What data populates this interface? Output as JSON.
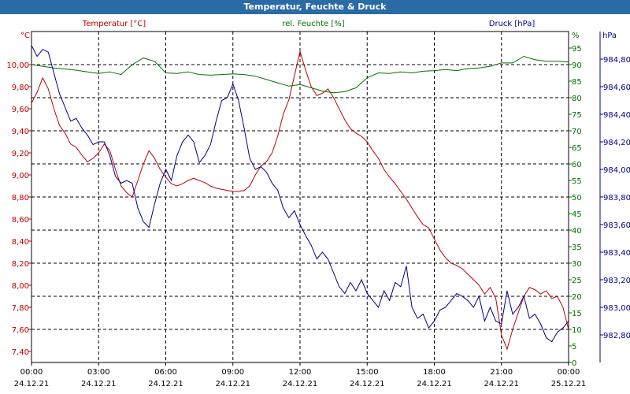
{
  "window": {
    "title": "Temperatur, Feuchte & Druck"
  },
  "colors": {
    "temperature": "#c00000",
    "humidity": "#007000",
    "pressure": "#00008b",
    "grid": "#000000"
  },
  "chart_data": {
    "type": "line",
    "title": "Temperatur, Feuchte & Druck",
    "grid": true,
    "x_range": [
      "2021-12-24 00:00",
      "2021-12-25 00:00"
    ],
    "x_ticks": [
      {
        "time": "00:00",
        "date": "24.12.21"
      },
      {
        "time": "03:00",
        "date": "24.12.21"
      },
      {
        "time": "06:00",
        "date": "24.12.21"
      },
      {
        "time": "09:00",
        "date": "24.12.21"
      },
      {
        "time": "12:00",
        "date": "24.12.21"
      },
      {
        "time": "15:00",
        "date": "24.12.21"
      },
      {
        "time": "18:00",
        "date": "24.12.21"
      },
      {
        "time": "21:00",
        "date": "24.12.21"
      },
      {
        "time": "00:00",
        "date": "25.12.21"
      }
    ],
    "axes": {
      "temperature": {
        "label": "Temperatur [°C]",
        "unit": "°C",
        "ylim": [
          7.3,
          10.3
        ],
        "ticks": [
          "7,40",
          "7,60",
          "7,80",
          "8,00",
          "8,20",
          "8,40",
          "8,60",
          "8,80",
          "9,00",
          "9,20",
          "9,40",
          "9,60",
          "9,80",
          "10,00"
        ],
        "tick_values": [
          7.4,
          7.6,
          7.8,
          8.0,
          8.2,
          8.4,
          8.6,
          8.8,
          9.0,
          9.2,
          9.4,
          9.6,
          9.8,
          10.0
        ]
      },
      "humidity": {
        "label": "rel. Feuchte [%]",
        "unit": "%",
        "ylim": [
          0,
          100
        ],
        "ticks": [
          "0",
          "5",
          "10",
          "15",
          "20",
          "25",
          "30",
          "35",
          "40",
          "45",
          "50",
          "55",
          "60",
          "65",
          "70",
          "75",
          "80",
          "85",
          "90",
          "95"
        ],
        "tick_values": [
          0,
          5,
          10,
          15,
          20,
          25,
          30,
          35,
          40,
          45,
          50,
          55,
          60,
          65,
          70,
          75,
          80,
          85,
          90,
          95
        ]
      },
      "pressure": {
        "label": "Druck [hPa]",
        "unit": "hPa",
        "ylim": [
          982.6,
          985.0
        ],
        "ticks": [
          "982,80",
          "983,00",
          "983,20",
          "983,40",
          "983,60",
          "983,80",
          "984,00",
          "984,20",
          "984,40",
          "984,60",
          "984,80"
        ],
        "tick_values": [
          982.8,
          983.0,
          983.2,
          983.4,
          983.6,
          983.8,
          984.0,
          984.2,
          984.4,
          984.6,
          984.8
        ]
      }
    },
    "series": [
      {
        "name": "Temperatur [°C]",
        "axis": "temperature",
        "x": [
          0,
          0.25,
          0.5,
          0.75,
          1,
          1.25,
          1.5,
          1.75,
          2,
          2.25,
          2.5,
          2.75,
          3,
          3.25,
          3.5,
          3.75,
          4,
          4.25,
          4.5,
          4.75,
          5,
          5.25,
          5.5,
          5.75,
          6,
          6.25,
          6.5,
          6.75,
          7,
          7.25,
          7.5,
          7.75,
          8,
          8.25,
          8.5,
          8.75,
          9,
          9.25,
          9.5,
          9.75,
          10,
          10.25,
          10.5,
          10.75,
          11,
          11.25,
          11.5,
          11.75,
          12,
          12.25,
          12.5,
          12.75,
          13,
          13.25,
          13.5,
          13.75,
          14,
          14.25,
          14.5,
          14.75,
          15,
          15.25,
          15.5,
          15.75,
          16,
          16.25,
          16.5,
          16.75,
          17,
          17.25,
          17.5,
          17.75,
          18,
          18.25,
          18.5,
          18.75,
          19,
          19.25,
          19.5,
          19.75,
          20,
          20.25,
          20.5,
          20.75,
          21,
          21.25,
          21.5,
          21.75,
          22,
          22.25,
          22.5,
          22.75,
          23,
          23.25,
          23.5,
          23.75,
          24
        ],
        "values": [
          9.65,
          9.75,
          9.88,
          9.78,
          9.6,
          9.45,
          9.38,
          9.28,
          9.25,
          9.18,
          9.12,
          9.15,
          9.2,
          9.28,
          9.22,
          9.05,
          8.9,
          8.84,
          8.8,
          8.95,
          9.1,
          9.22,
          9.15,
          9.05,
          8.98,
          8.92,
          8.9,
          8.92,
          8.95,
          8.97,
          8.95,
          8.93,
          8.9,
          8.88,
          8.87,
          8.86,
          8.85,
          8.85,
          8.86,
          8.9,
          9.0,
          9.08,
          9.12,
          9.2,
          9.35,
          9.55,
          9.68,
          9.9,
          10.12,
          9.95,
          9.8,
          9.72,
          9.74,
          9.78,
          9.7,
          9.6,
          9.5,
          9.42,
          9.38,
          9.35,
          9.3,
          9.22,
          9.15,
          9.05,
          8.98,
          8.92,
          8.85,
          8.78,
          8.7,
          8.62,
          8.55,
          8.52,
          8.42,
          8.32,
          8.25,
          8.2,
          8.18,
          8.15,
          8.1,
          8.05,
          8.0,
          7.92,
          7.98,
          7.88,
          7.55,
          7.42,
          7.6,
          7.75,
          7.9,
          7.98,
          7.96,
          7.92,
          7.95,
          7.88,
          7.9,
          7.8,
          7.6
        ]
      },
      {
        "name": "rel. Feuchte [%]",
        "axis": "humidity",
        "x": [
          0,
          0.5,
          1,
          1.5,
          2,
          2.5,
          3,
          3.5,
          4,
          4.5,
          5,
          5.5,
          6,
          6.5,
          7,
          7.5,
          8,
          8.5,
          9,
          9.5,
          10,
          10.5,
          11,
          11.5,
          12,
          12.5,
          13,
          13.5,
          14,
          14.5,
          15,
          15.5,
          16,
          16.5,
          17,
          17.5,
          18,
          18.5,
          19,
          19.5,
          20,
          20.5,
          21,
          21.5,
          22,
          22.5,
          23,
          23.5,
          24
        ],
        "values": [
          90,
          89.5,
          89,
          88.7,
          88.3,
          87.8,
          87.3,
          87.8,
          87,
          90,
          92,
          91,
          87.5,
          87.3,
          87.8,
          87,
          86.8,
          87,
          87.2,
          87,
          86.5,
          85.5,
          84.5,
          83.5,
          84,
          83,
          82,
          81.5,
          81.8,
          83,
          86,
          87.5,
          87.3,
          87.8,
          87.5,
          88,
          88.2,
          88.5,
          88.2,
          88.8,
          89,
          89.5,
          90.5,
          90.5,
          92.5,
          91.5,
          91,
          91,
          90.8
        ]
      },
      {
        "name": "Druck [hPa]",
        "axis": "pressure",
        "x": [
          0,
          0.25,
          0.5,
          0.75,
          1,
          1.25,
          1.5,
          1.75,
          2,
          2.25,
          2.5,
          2.75,
          3,
          3.25,
          3.5,
          3.75,
          4,
          4.25,
          4.5,
          4.75,
          5,
          5.25,
          5.5,
          5.75,
          6,
          6.25,
          6.5,
          6.75,
          7,
          7.25,
          7.5,
          7.75,
          8,
          8.25,
          8.5,
          8.75,
          9,
          9.25,
          9.5,
          9.75,
          10,
          10.25,
          10.5,
          10.75,
          11,
          11.25,
          11.5,
          11.75,
          12,
          12.25,
          12.5,
          12.75,
          13,
          13.25,
          13.5,
          13.75,
          14,
          14.25,
          14.5,
          14.75,
          15,
          15.25,
          15.5,
          15.75,
          16,
          16.25,
          16.5,
          16.75,
          17,
          17.25,
          17.5,
          17.75,
          18,
          18.25,
          18.5,
          18.75,
          19,
          19.25,
          19.5,
          19.75,
          20,
          20.25,
          20.5,
          20.75,
          21,
          21.25,
          21.5,
          21.75,
          22,
          22.25,
          22.5,
          22.75,
          23,
          23.25,
          23.5,
          23.75,
          24
        ],
        "values": [
          984.9,
          984.82,
          984.87,
          984.85,
          984.7,
          984.55,
          984.45,
          984.35,
          984.37,
          984.3,
          984.25,
          984.18,
          984.2,
          984.2,
          984.1,
          983.95,
          983.9,
          983.92,
          983.9,
          983.72,
          983.62,
          983.58,
          983.75,
          983.9,
          984.0,
          983.92,
          984.1,
          984.2,
          984.25,
          984.2,
          984.05,
          984.1,
          984.18,
          984.35,
          984.5,
          984.52,
          984.62,
          984.5,
          984.3,
          984.08,
          984.0,
          984.02,
          983.98,
          983.9,
          983.85,
          983.72,
          983.65,
          983.7,
          983.6,
          983.52,
          983.45,
          983.35,
          983.4,
          983.35,
          983.25,
          983.15,
          983.1,
          983.18,
          983.12,
          983.2,
          983.1,
          983.05,
          983.0,
          983.12,
          983.05,
          983.18,
          983.15,
          983.3,
          983.0,
          982.92,
          982.95,
          982.85,
          982.9,
          982.98,
          983.0,
          983.05,
          983.1,
          983.08,
          983.05,
          983.0,
          983.08,
          982.9,
          983.0,
          982.9,
          982.88,
          983.12,
          982.95,
          983.0,
          983.08,
          982.92,
          982.95,
          982.88,
          982.78,
          982.75,
          982.82,
          982.85,
          982.9
        ]
      }
    ]
  }
}
